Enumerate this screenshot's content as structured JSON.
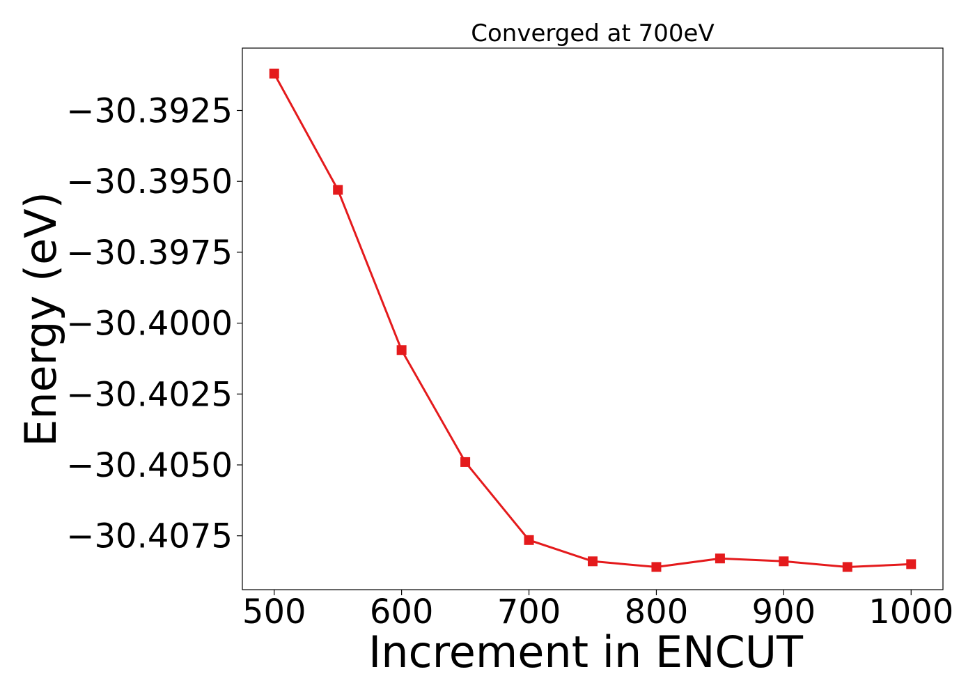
{
  "chart_data": {
    "type": "line",
    "title": "Converged at 700eV",
    "xlabel": "Increment in ENCUT",
    "ylabel": "Energy (eV)",
    "xlim": [
      475,
      1025
    ],
    "ylim": [
      -30.4094,
      -30.3903
    ],
    "x_ticks": [
      500,
      600,
      700,
      800,
      900,
      1000
    ],
    "x_tick_labels": [
      "500",
      "600",
      "700",
      "800",
      "900",
      "1000"
    ],
    "y_ticks": [
      -30.3925,
      -30.395,
      -30.3975,
      -30.4,
      -30.4025,
      -30.405,
      -30.4075
    ],
    "y_tick_labels": [
      "−30.3925",
      "−30.3950",
      "−30.3975",
      "−30.4000",
      "−30.4025",
      "−30.4050",
      "−30.4075"
    ],
    "grid": false,
    "legend": "none",
    "series": [
      {
        "color": "#e41a1c",
        "marker": "square",
        "x": [
          500,
          550,
          600,
          650,
          700,
          750,
          800,
          850,
          900,
          950,
          1000
        ],
        "y": [
          -30.3912,
          -30.3953,
          -30.40095,
          -30.4049,
          -30.40765,
          -30.4084,
          -30.4086,
          -30.4083,
          -30.4084,
          -30.4086,
          -30.4085
        ]
      }
    ]
  }
}
